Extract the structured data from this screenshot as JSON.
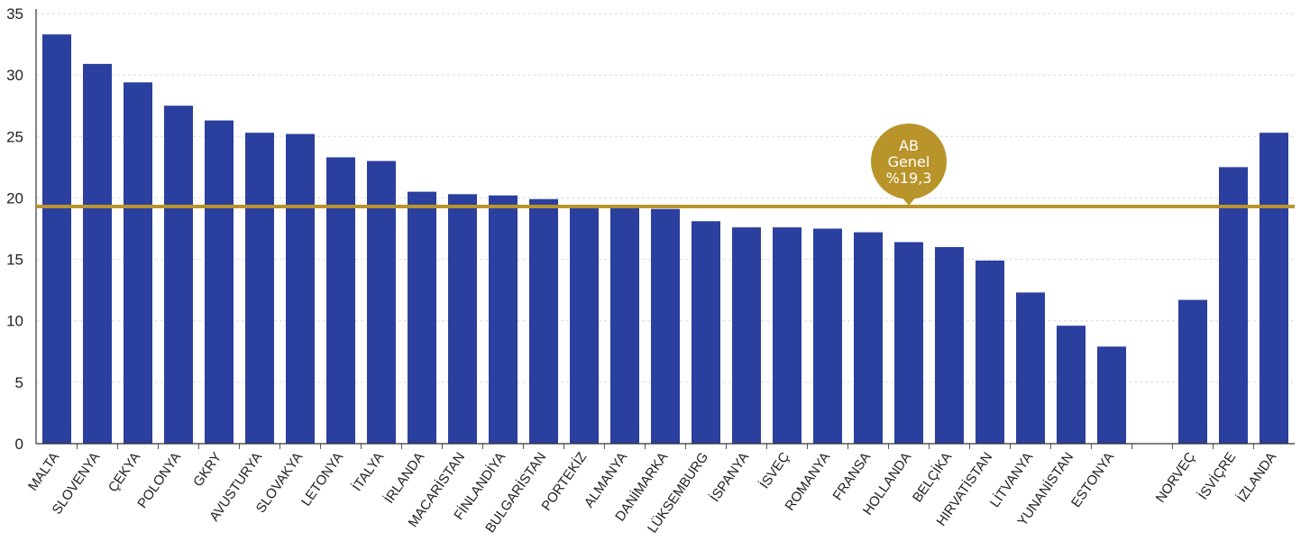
{
  "chart_data": {
    "type": "bar",
    "title": "",
    "xlabel": "",
    "ylabel": "",
    "ylim": [
      0,
      35
    ],
    "yticks": [
      0,
      5,
      10,
      15,
      20,
      25,
      30,
      35
    ],
    "grid": true,
    "bar_color": "#2b3f9e",
    "reference_color": "#b8942a",
    "categories": [
      "MALTA",
      "SLOVENYA",
      "ÇEKYA",
      "POLONYA",
      "GKRY",
      "AVUSTURYA",
      "SLOVAKYA",
      "LETONYA",
      "İTALYA",
      "İRLANDA",
      "MACARİSTAN",
      "FİNLANDİYA",
      "BULGARİSTAN",
      "PORTEKİZ",
      "ALMANYA",
      "DANİMARKA",
      "LÜKSEMBURG",
      "İSPANYA",
      "İSVEÇ",
      "ROMANYA",
      "FRANSA",
      "HOLLANDA",
      "BELÇİKA",
      "HIRVATİSTAN",
      "LİTVANYA",
      "YUNANİSTAN",
      "ESTONYA",
      "",
      "NORVEÇ",
      "İSVİÇRE",
      "İZLANDA"
    ],
    "values": [
      33.3,
      30.9,
      29.4,
      27.5,
      26.3,
      25.3,
      25.2,
      23.3,
      23.0,
      20.5,
      20.3,
      20.2,
      19.9,
      19.4,
      19.3,
      19.1,
      18.1,
      17.6,
      17.6,
      17.5,
      17.2,
      16.4,
      16.0,
      14.9,
      12.3,
      9.6,
      7.9,
      null,
      11.7,
      22.5,
      25.3
    ],
    "reference": {
      "value": 19.3,
      "label_lines": [
        "AB",
        "Genel",
        "%19,3"
      ]
    }
  }
}
